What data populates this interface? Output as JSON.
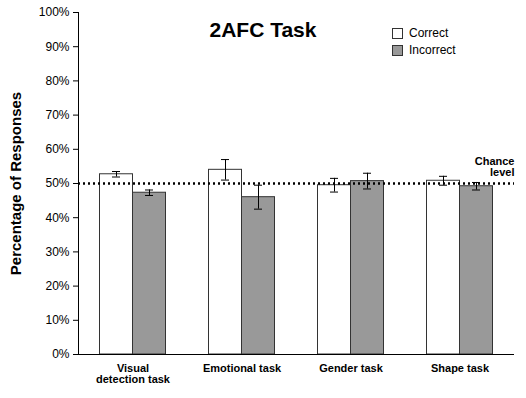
{
  "chart_data": {
    "type": "bar",
    "title": "2AFC Task",
    "y_label": "Percentage of Responses",
    "categories": [
      "Visual\ndetection task",
      "Emotional task",
      "Gender task",
      "Shape task"
    ],
    "series": [
      {
        "name": "Correct",
        "color": "#ffffff",
        "values": [
          52.7,
          54.0,
          49.5,
          50.8
        ],
        "errors": [
          0.8,
          3.0,
          2.0,
          1.3
        ]
      },
      {
        "name": "Incorrect",
        "color": "#999999",
        "values": [
          47.3,
          46.0,
          50.7,
          49.2
        ],
        "errors": [
          0.8,
          3.5,
          2.3,
          1.1
        ]
      }
    ],
    "ylim": [
      0,
      100
    ],
    "yticks": [
      {
        "value": 0,
        "label": "0%"
      },
      {
        "value": 10,
        "label": "10%"
      },
      {
        "value": 20,
        "label": "20%"
      },
      {
        "value": 30,
        "label": "30%"
      },
      {
        "value": 40,
        "label": "40%"
      },
      {
        "value": 50,
        "label": "50%"
      },
      {
        "value": 60,
        "label": "60%"
      },
      {
        "value": 70,
        "label": "70%"
      },
      {
        "value": 80,
        "label": "80%"
      },
      {
        "value": 90,
        "label": "90%"
      },
      {
        "value": 100,
        "label": "100%"
      }
    ],
    "grid": false,
    "legend": "top-right",
    "chance_level": {
      "value": 50,
      "label": "Chance\nlevel"
    }
  }
}
